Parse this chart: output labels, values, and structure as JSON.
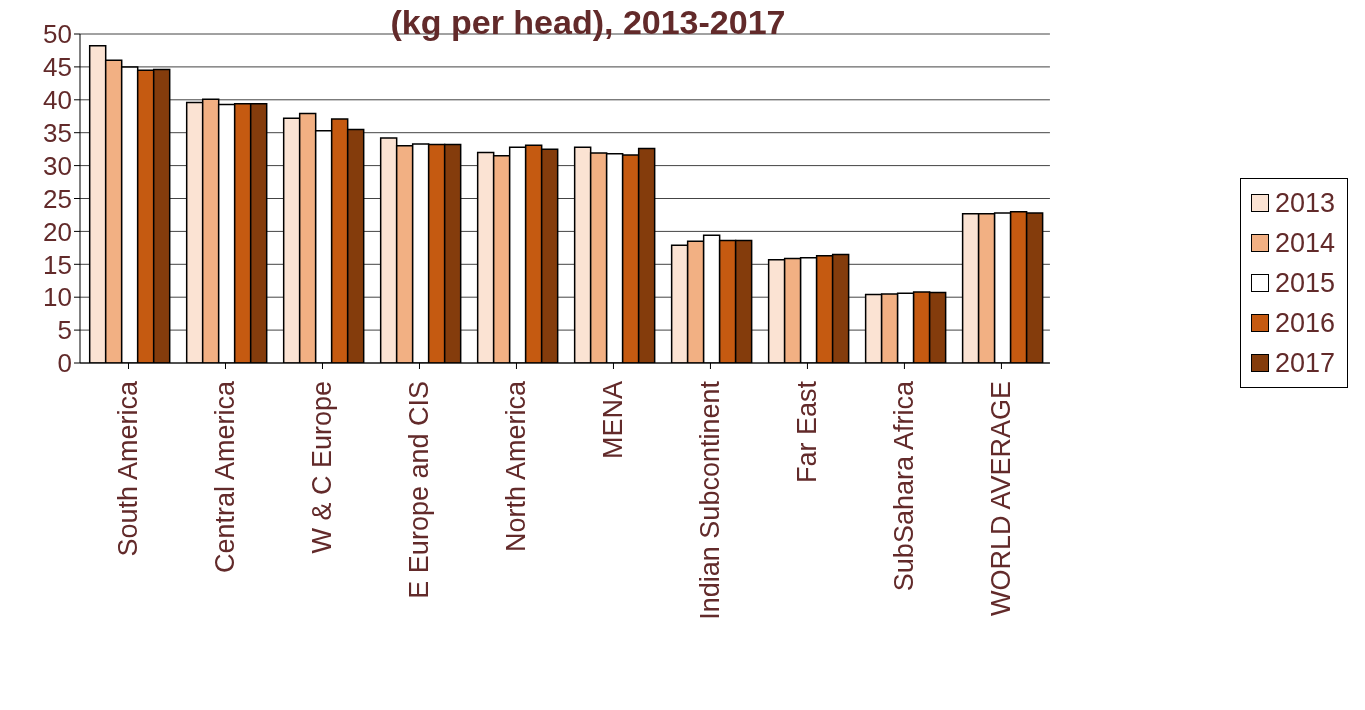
{
  "chart_data": {
    "type": "bar",
    "title": "(kg per head), 2013-2017",
    "categories": [
      "South America",
      "Central America",
      "W & C Europe",
      "E Europe and CIS",
      "North  America",
      "MENA",
      "Indian Subcontinent",
      "Far East",
      "SubSahara Africa",
      "WORLD AVERAGE"
    ],
    "series": [
      {
        "name": "2013",
        "color": "#fbe3d3",
        "values": [
          48.2,
          39.6,
          37.2,
          34.2,
          32.0,
          32.8,
          17.9,
          15.7,
          10.4,
          22.7
        ]
      },
      {
        "name": "2014",
        "color": "#f2b083",
        "values": [
          46.0,
          40.1,
          37.9,
          33.0,
          31.5,
          31.9,
          18.5,
          15.9,
          10.5,
          22.7
        ]
      },
      {
        "name": "2015",
        "color": "#ffffff",
        "values": [
          45.0,
          39.3,
          35.3,
          33.3,
          32.8,
          31.8,
          19.4,
          16.0,
          10.6,
          22.8
        ]
      },
      {
        "name": "2016",
        "color": "#c55a11",
        "values": [
          44.5,
          39.4,
          37.1,
          33.2,
          33.1,
          31.6,
          18.6,
          16.3,
          10.8,
          23.0
        ]
      },
      {
        "name": "2017",
        "color": "#843c0c",
        "values": [
          44.6,
          39.4,
          35.5,
          33.2,
          32.5,
          32.6,
          18.6,
          16.5,
          10.7,
          22.8
        ]
      }
    ],
    "ylim": [
      0,
      50
    ],
    "yticks": [
      0,
      5,
      10,
      15,
      20,
      25,
      30,
      35,
      40,
      45,
      50
    ],
    "grid": "y",
    "legend": "right"
  }
}
